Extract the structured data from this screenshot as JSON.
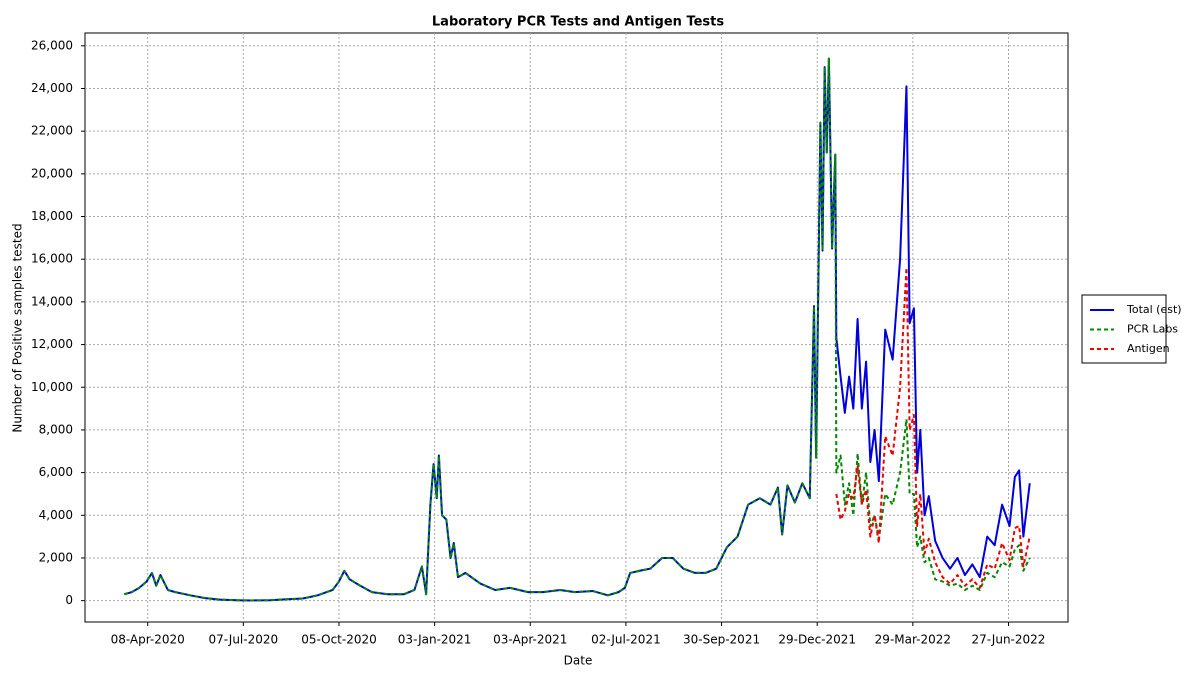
{
  "chart_data": {
    "type": "line",
    "title": "Laboratory PCR Tests and Antigen Tests",
    "x_label": "Date",
    "y_label": "Number of Positive samples tested",
    "grid": true,
    "legend_position": "right",
    "xlim": [
      "2020-02-09",
      "2022-08-22"
    ],
    "xticks": [
      {
        "value": "2020-04-08",
        "label": "08-Apr-2020"
      },
      {
        "value": "2020-07-07",
        "label": "07-Jul-2020"
      },
      {
        "value": "2020-10-05",
        "label": "05-Oct-2020"
      },
      {
        "value": "2021-01-03",
        "label": "03-Jan-2021"
      },
      {
        "value": "2021-04-03",
        "label": "03-Apr-2021"
      },
      {
        "value": "2021-07-02",
        "label": "02-Jul-2021"
      },
      {
        "value": "2021-09-30",
        "label": "30-Sep-2021"
      },
      {
        "value": "2021-12-29",
        "label": "29-Dec-2021"
      },
      {
        "value": "2022-03-29",
        "label": "29-Mar-2022"
      },
      {
        "value": "2022-06-27",
        "label": "27-Jun-2022"
      }
    ],
    "ylim": [
      -1000,
      26600
    ],
    "yticks": [
      0,
      {
        "value": 2000,
        "label": "2,000"
      },
      {
        "value": 4000,
        "label": "4,000"
      },
      {
        "value": 6000,
        "label": "6,000"
      },
      {
        "value": 8000,
        "label": "8,000"
      },
      {
        "value": 10000,
        "label": "10,000"
      },
      {
        "value": 12000,
        "label": "12,000"
      },
      {
        "value": 14000,
        "label": "14,000"
      },
      {
        "value": 16000,
        "label": "16,000"
      },
      {
        "value": 18000,
        "label": "18,000"
      },
      {
        "value": 20000,
        "label": "20,000"
      },
      {
        "value": 22000,
        "label": "22,000"
      },
      {
        "value": 24000,
        "label": "24,000"
      },
      {
        "value": 26000,
        "label": "26,000"
      }
    ],
    "x": [
      "2020-03-17",
      "2020-03-24",
      "2020-03-31",
      "2020-04-07",
      "2020-04-12",
      "2020-04-16",
      "2020-04-20",
      "2020-04-27",
      "2020-05-04",
      "2020-05-18",
      "2020-06-01",
      "2020-06-15",
      "2020-07-01",
      "2020-07-15",
      "2020-08-01",
      "2020-08-15",
      "2020-09-01",
      "2020-09-15",
      "2020-09-29",
      "2020-10-05",
      "2020-10-10",
      "2020-10-15",
      "2020-10-25",
      "2020-11-05",
      "2020-11-20",
      "2020-12-05",
      "2020-12-15",
      "2020-12-22",
      "2020-12-26",
      "2020-12-30",
      "2021-01-02",
      "2021-01-05",
      "2021-01-07",
      "2021-01-10",
      "2021-01-14",
      "2021-01-18",
      "2021-01-21",
      "2021-01-25",
      "2021-02-01",
      "2021-02-15",
      "2021-03-01",
      "2021-03-15",
      "2021-04-01",
      "2021-04-15",
      "2021-05-01",
      "2021-05-15",
      "2021-06-01",
      "2021-06-15",
      "2021-06-25",
      "2021-07-01",
      "2021-07-06",
      "2021-07-15",
      "2021-07-25",
      "2021-08-05",
      "2021-08-15",
      "2021-08-25",
      "2021-09-05",
      "2021-09-15",
      "2021-09-25",
      "2021-10-05",
      "2021-10-15",
      "2021-10-25",
      "2021-11-05",
      "2021-11-15",
      "2021-11-22",
      "2021-11-26",
      "2021-12-01",
      "2021-12-08",
      "2021-12-15",
      "2021-12-22",
      "2021-12-26",
      "2021-12-28",
      "2022-01-01",
      "2022-01-03",
      "2022-01-05",
      "2022-01-07",
      "2022-01-09",
      "2022-01-12",
      "2022-01-15",
      "2022-01-16",
      "2022-01-20",
      "2022-01-24",
      "2022-01-28",
      "2022-02-01",
      "2022-02-05",
      "2022-02-09",
      "2022-02-13",
      "2022-02-17",
      "2022-02-21",
      "2022-02-25",
      "2022-03-03",
      "2022-03-10",
      "2022-03-17",
      "2022-03-23",
      "2022-03-26",
      "2022-03-30",
      "2022-04-02",
      "2022-04-05",
      "2022-04-09",
      "2022-04-13",
      "2022-04-19",
      "2022-04-26",
      "2022-05-03",
      "2022-05-10",
      "2022-05-17",
      "2022-05-24",
      "2022-05-31",
      "2022-06-07",
      "2022-06-14",
      "2022-06-21",
      "2022-06-28",
      "2022-07-03",
      "2022-07-07",
      "2022-07-11",
      "2022-07-17"
    ],
    "series": [
      {
        "name": "Total (est)",
        "color": "#0000dd",
        "line_style": "solid",
        "values": [
          300,
          400,
          600,
          900,
          1300,
          700,
          1200,
          500,
          400,
          250,
          120,
          50,
          20,
          10,
          20,
          60,
          100,
          250,
          500,
          900,
          1400,
          1000,
          700,
          400,
          300,
          300,
          500,
          1600,
          300,
          4500,
          6400,
          4800,
          6800,
          4000,
          3800,
          2000,
          2700,
          1100,
          1300,
          800,
          500,
          600,
          400,
          400,
          500,
          400,
          450,
          250,
          400,
          600,
          1300,
          1400,
          1500,
          2000,
          2000,
          1500,
          1300,
          1300,
          1500,
          2500,
          3000,
          4500,
          4800,
          4500,
          5300,
          3100,
          5400,
          4600,
          5500,
          4800,
          13800,
          6700,
          22400,
          16400,
          25000,
          21000,
          25400,
          16500,
          20900,
          12300,
          10500,
          8800,
          10500,
          9000,
          13200,
          9000,
          11200,
          6500,
          8000,
          5600,
          12700,
          11300,
          16000,
          24100,
          13000,
          13700,
          6000,
          8000,
          4000,
          4900,
          2800,
          2000,
          1500,
          2000,
          1200,
          1700,
          1100,
          3000,
          2600,
          4500,
          3500,
          5800,
          6100,
          3000,
          5500
        ]
      },
      {
        "name": "PCR Labs",
        "color": "#008800",
        "line_style": "dashed",
        "values": [
          300,
          400,
          600,
          900,
          1300,
          700,
          1200,
          500,
          400,
          250,
          120,
          50,
          20,
          10,
          20,
          60,
          100,
          250,
          500,
          900,
          1400,
          1000,
          700,
          400,
          300,
          300,
          500,
          1600,
          300,
          4500,
          6400,
          4800,
          6800,
          4000,
          3800,
          2000,
          2700,
          1100,
          1300,
          800,
          500,
          600,
          400,
          400,
          500,
          400,
          450,
          250,
          400,
          600,
          1300,
          1400,
          1500,
          2000,
          2000,
          1500,
          1300,
          1300,
          1500,
          2500,
          3000,
          4500,
          4800,
          4500,
          5300,
          3100,
          5400,
          4600,
          5500,
          4800,
          13800,
          6700,
          22400,
          16400,
          25000,
          21000,
          25400,
          16500,
          20900,
          6000,
          6800,
          4500,
          5500,
          4000,
          6900,
          4500,
          6000,
          3500,
          4000,
          2900,
          5000,
          4500,
          6000,
          8500,
          5000,
          5000,
          2500,
          3000,
          1800,
          2000,
          1000,
          900,
          700,
          800,
          500,
          700,
          500,
          1300,
          1100,
          1800,
          1600,
          2400,
          2600,
          1400,
          2000
        ]
      },
      {
        "name": "Antigen",
        "color": "#ee0000",
        "line_style": "dashed",
        "values": [
          null,
          null,
          null,
          null,
          null,
          null,
          null,
          null,
          null,
          null,
          null,
          null,
          null,
          null,
          null,
          null,
          null,
          null,
          null,
          null,
          null,
          null,
          null,
          null,
          null,
          null,
          null,
          null,
          null,
          null,
          null,
          null,
          null,
          null,
          null,
          null,
          null,
          null,
          null,
          null,
          null,
          null,
          null,
          null,
          null,
          null,
          null,
          null,
          null,
          null,
          null,
          null,
          null,
          null,
          null,
          null,
          null,
          null,
          null,
          null,
          null,
          null,
          null,
          null,
          null,
          null,
          null,
          null,
          null,
          null,
          null,
          null,
          null,
          null,
          null,
          null,
          null,
          null,
          null,
          5000,
          3800,
          4200,
          5000,
          4800,
          6300,
          4500,
          5200,
          3000,
          4000,
          2700,
          7700,
          6800,
          10000,
          15600,
          8000,
          8700,
          3500,
          5000,
          2200,
          2900,
          1800,
          1100,
          800,
          1200,
          700,
          1000,
          600,
          1700,
          1500,
          2700,
          1900,
          3400,
          3500,
          1600,
          3000
        ]
      }
    ]
  }
}
